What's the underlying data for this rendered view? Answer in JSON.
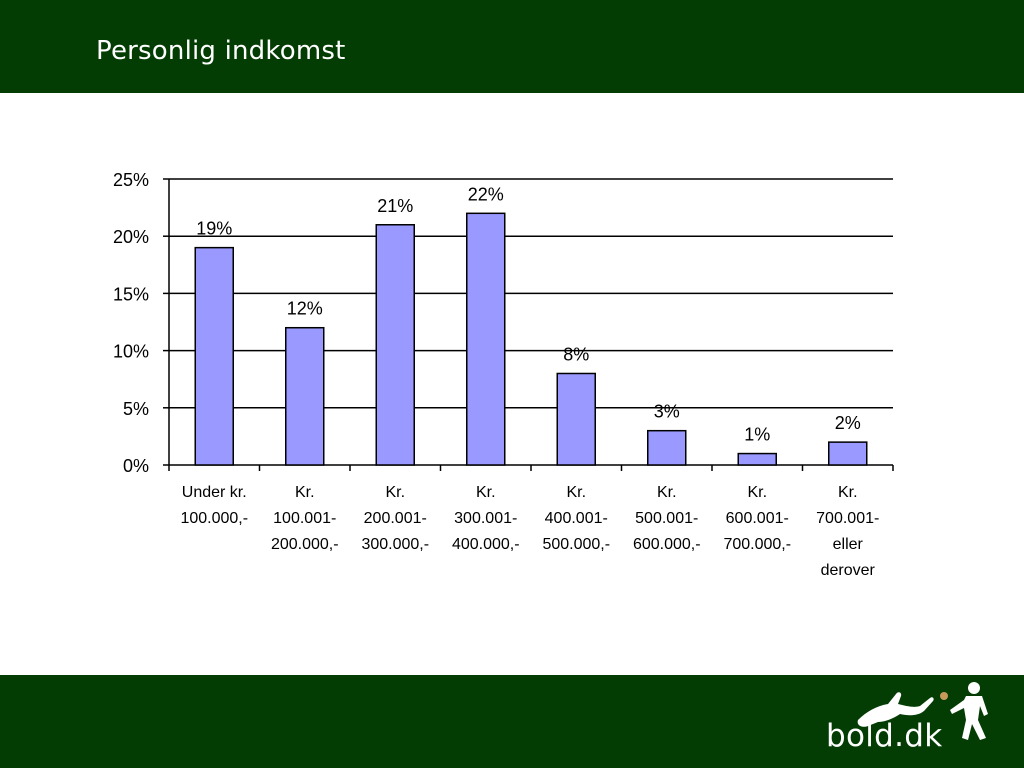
{
  "slide": {
    "title": "Personlig indkomst"
  },
  "logo": {
    "text": "bold.dk"
  },
  "colors": {
    "header_bg": "#043d04",
    "bar_fill": "#9999ff",
    "bar_stroke": "#000000",
    "logo_dot": "#c79a5a"
  },
  "chart_data": {
    "type": "bar",
    "title": "",
    "xlabel": "",
    "ylabel": "",
    "categories": [
      [
        "Under kr.",
        "100.000,-"
      ],
      [
        "Kr.",
        "100.001-",
        "200.000,-"
      ],
      [
        "Kr.",
        "200.001-",
        "300.000,-"
      ],
      [
        "Kr.",
        "300.001-",
        "400.000,-"
      ],
      [
        "Kr.",
        "400.001-",
        "500.000,-"
      ],
      [
        "Kr.",
        "500.001-",
        "600.000,-"
      ],
      [
        "Kr.",
        "600.001-",
        "700.000,-"
      ],
      [
        "Kr.",
        "700.001-",
        "eller",
        "derover"
      ]
    ],
    "values": [
      19,
      12,
      21,
      22,
      8,
      3,
      1,
      2
    ],
    "value_labels": [
      "19%",
      "12%",
      "21%",
      "22%",
      "8%",
      "3%",
      "1%",
      "2%"
    ],
    "yticks": [
      "0%",
      "5%",
      "10%",
      "15%",
      "20%",
      "25%"
    ],
    "ylim": [
      0,
      25
    ],
    "grid": true,
    "legend": "none"
  }
}
